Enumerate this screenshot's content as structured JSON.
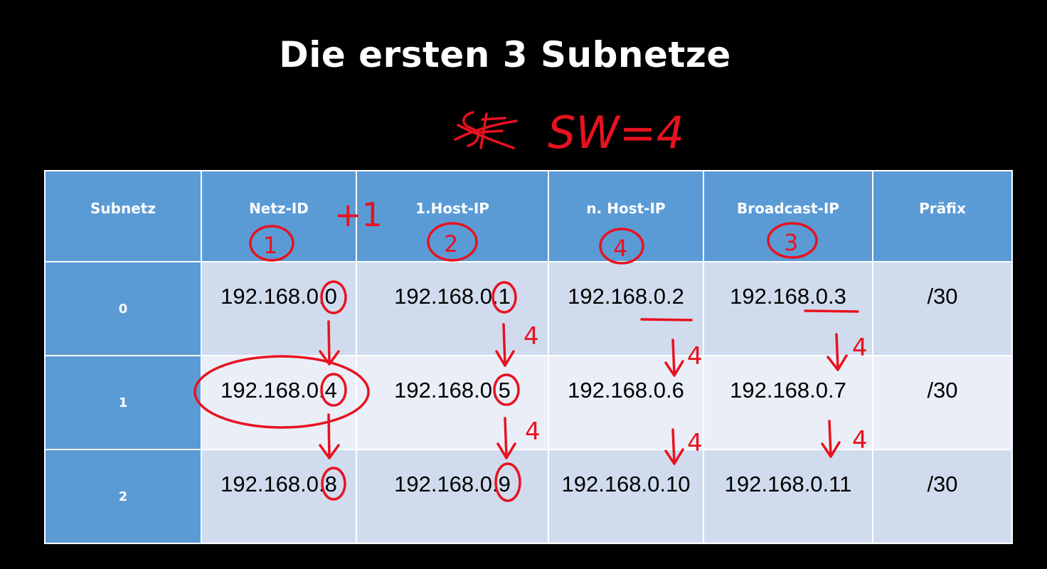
{
  "title": "Die ersten 3 Subnetze",
  "annotation": {
    "formula": "SW=4",
    "plus_one": "+1",
    "step": "4",
    "order_marks": [
      "1",
      "2",
      "4",
      "3"
    ],
    "color": "#e8121f"
  },
  "table": {
    "headers": [
      "Subnetz",
      "Netz-ID",
      "1.Host-IP",
      "n. Host-IP",
      "Broadcast-IP",
      "Präfix"
    ],
    "rows": [
      [
        "0",
        "192.168.0.0",
        "192.168.0.1",
        "192.168.0.2",
        "192.168.0.3",
        "/30"
      ],
      [
        "1",
        "192.168.0.4",
        "192.168.0.5",
        "192.168.0.6",
        "192.168.0.7",
        "/30"
      ],
      [
        "2",
        "192.168.0.8",
        "192.168.0.9",
        "192.168.0.10",
        "192.168.0.11",
        "/30"
      ]
    ],
    "header_color": "#5b9bd5",
    "row_color_odd": "#d0dcee",
    "row_color_even": "#e9eef7"
  }
}
